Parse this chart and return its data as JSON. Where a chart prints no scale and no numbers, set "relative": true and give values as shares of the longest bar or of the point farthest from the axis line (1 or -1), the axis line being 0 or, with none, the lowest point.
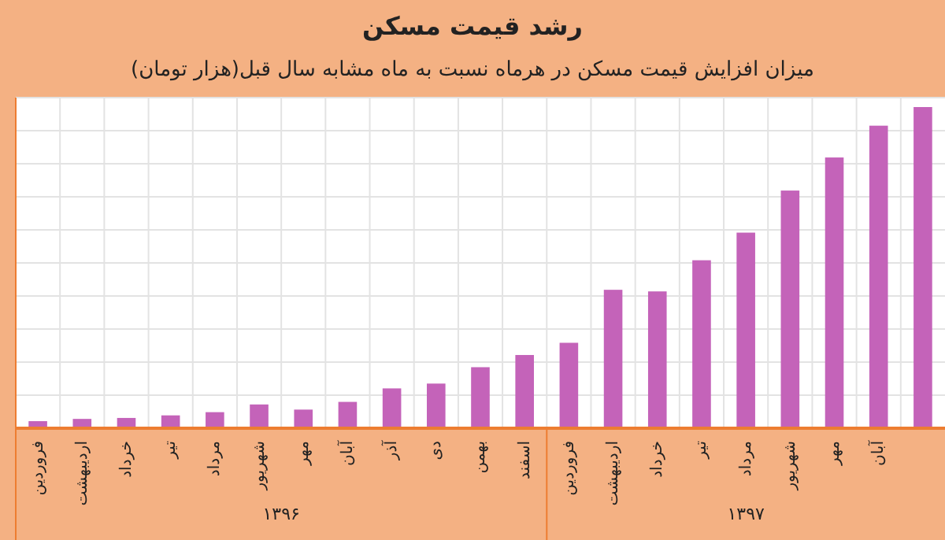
{
  "chart_data": {
    "type": "bar",
    "title": "رشد قیمت مسکن",
    "subtitle": "میزان افزایش قیمت مسکن در هرماه نسبت به ماه مشابه سال قبل(هزار تومان)",
    "categories": [
      "فروردین",
      "اردیبهشت",
      "خرداد",
      "تیر",
      "مرداد",
      "شهریور",
      "مهر",
      "آبان",
      "آذر",
      "دی",
      "بهمن",
      "اسفند",
      "فروردین",
      "اردیبهشت",
      "خرداد",
      "تیر",
      "مرداد",
      "شهریور",
      "مهر",
      "آبان",
      null
    ],
    "relative": true,
    "values": [
      0.022,
      0.029,
      0.032,
      0.04,
      0.05,
      0.074,
      0.058,
      0.082,
      0.124,
      0.139,
      0.19,
      0.228,
      0.266,
      0.431,
      0.426,
      0.523,
      0.609,
      0.74,
      0.843,
      0.942,
      1.0
    ],
    "color": "#c463b9",
    "grid": true,
    "annotations": [
      "۱۳۹۶",
      "۱۳۹۷"
    ]
  }
}
